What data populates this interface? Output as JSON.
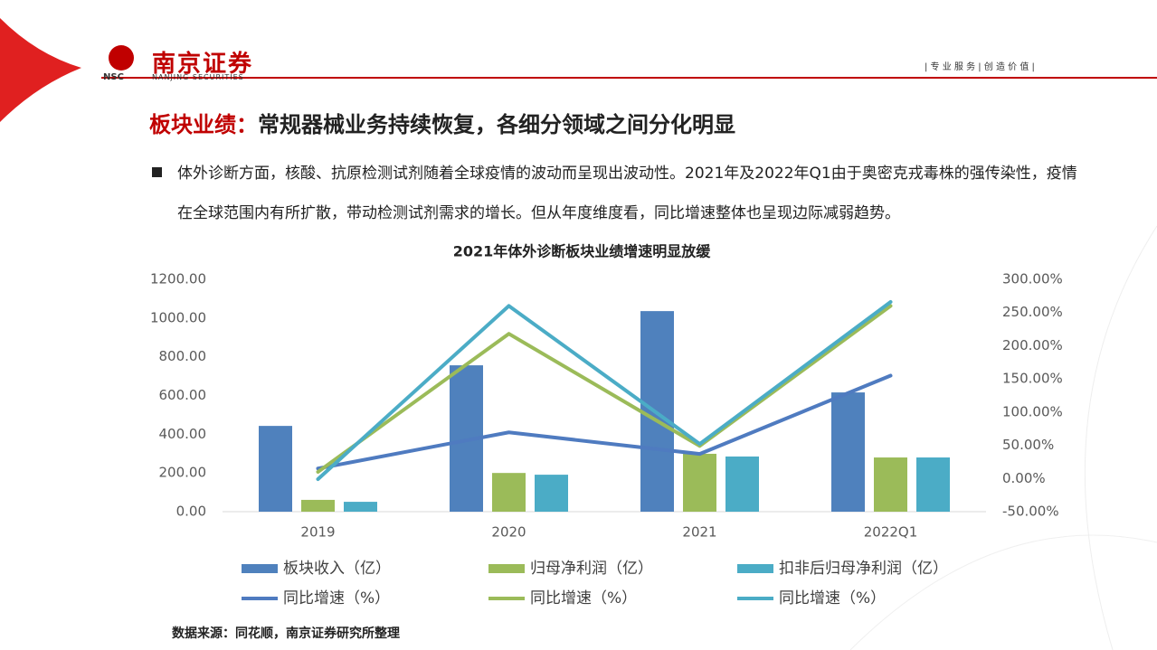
{
  "header": {
    "brand": "南京证券",
    "brand_en": "NANJING SECURITIES",
    "abbr": "NSC",
    "slogan": "| 专 业 服 务 | 创 造 价 值 |"
  },
  "heading": {
    "label": "板块业绩：",
    "text": "常规器械业务持续恢复，各细分领域之间分化明显"
  },
  "bullet": "体外诊断方面，核酸、抗原检测试剂随着全球疫情的波动而呈现出波动性。2021年及2022年Q1由于奥密克戎毒株的强传染性，疫情在全球范围内有所扩散，带动检测试剂需求的增长。但从年度维度看，同比增速整体也呈现边际减弱趋势。",
  "source": "数据来源：同花顺，南京证券研究所整理",
  "chart_data": {
    "type": "bar",
    "title": "2021年体外诊断板块业绩增速明显放缓",
    "categories": [
      "2019",
      "2020",
      "2021",
      "2022Q1"
    ],
    "ylim": [
      0,
      1200
    ],
    "yticks": [
      {
        "value": 0,
        "label": "0.00"
      },
      {
        "value": 200,
        "label": "200.00"
      },
      {
        "value": 400,
        "label": "400.00"
      },
      {
        "value": 600,
        "label": "600.00"
      },
      {
        "value": 800,
        "label": "800.00"
      },
      {
        "value": 1000,
        "label": "1000.00"
      },
      {
        "value": 1200,
        "label": "1200.00"
      }
    ],
    "y2lim": [
      -50,
      300
    ],
    "y2ticks": [
      {
        "value": -50,
        "label": "-50.00%"
      },
      {
        "value": 0,
        "label": "0.00%"
      },
      {
        "value": 50,
        "label": "50.00%"
      },
      {
        "value": 100,
        "label": "100.00%"
      },
      {
        "value": 150,
        "label": "150.00%"
      },
      {
        "value": 200,
        "label": "200.00%"
      },
      {
        "value": 250,
        "label": "250.00%"
      },
      {
        "value": 300,
        "label": "300.00%"
      }
    ],
    "series": [
      {
        "name": "板块收入（亿）",
        "type": "bar",
        "color": "#4f81bd",
        "values": [
          443,
          756,
          1036,
          616
        ]
      },
      {
        "name": "归母净利润（亿）",
        "type": "bar",
        "color": "#9bbb59",
        "values": [
          61,
          200,
          299,
          280
        ]
      },
      {
        "name": "扣非后归母净利润（亿）",
        "type": "bar",
        "color": "#4bacc6",
        "values": [
          51,
          191,
          285,
          280
        ]
      },
      {
        "name": "同比增速（%）",
        "type": "line",
        "axis": "y2",
        "color": "#4f7bc0",
        "values": [
          15,
          69.5,
          37,
          155
        ]
      },
      {
        "name": "同比增速（%）",
        "type": "line",
        "axis": "y2",
        "color": "#9bbb59",
        "values": [
          10,
          218,
          49,
          260
        ]
      },
      {
        "name": "同比增速（%）",
        "type": "line",
        "axis": "y2",
        "color": "#4bacc6",
        "values": [
          -1,
          260,
          52,
          266
        ]
      }
    ]
  }
}
